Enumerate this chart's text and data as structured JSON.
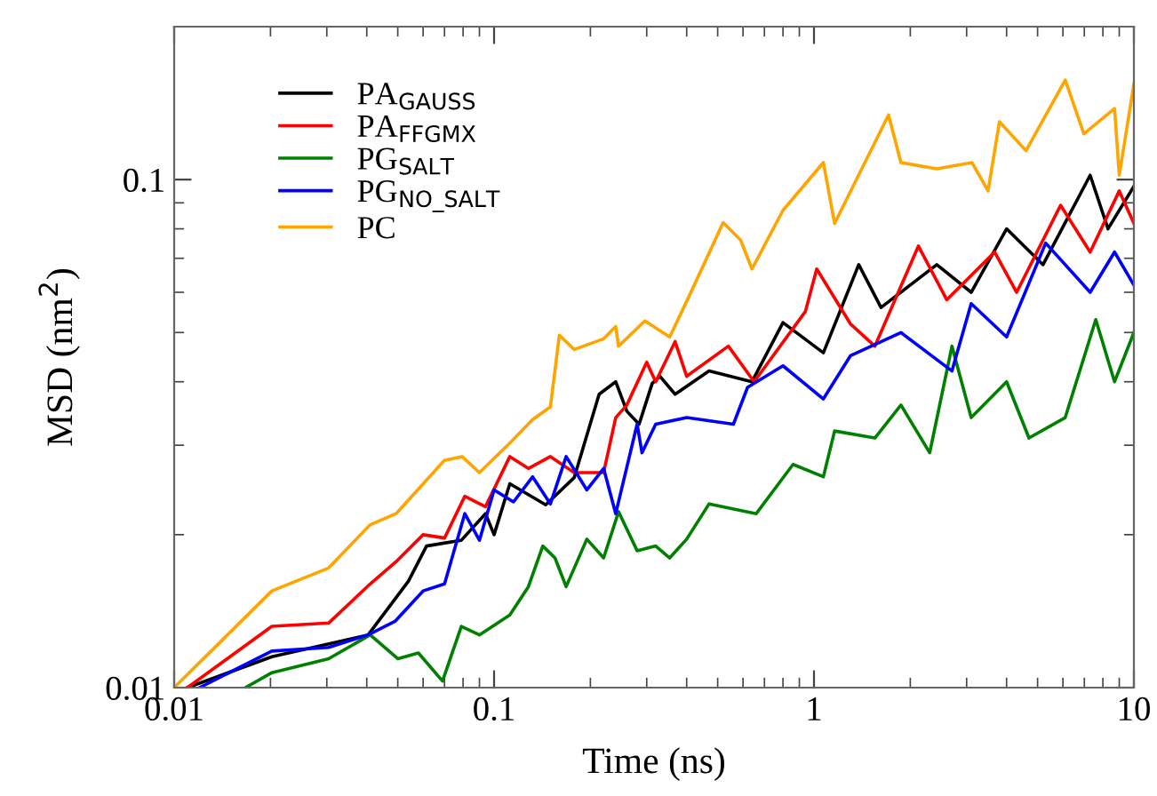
{
  "chart_data": {
    "type": "line",
    "xlabel": "Time (ns)",
    "ylabel": "MSD (nm$^{2}$)",
    "log": "xy",
    "xlim": [
      0.01,
      10
    ],
    "ylim": [
      0.01,
      0.2
    ],
    "xticks": [
      0.01,
      0.1,
      1,
      10
    ],
    "yticks": [
      0.01,
      0.1
    ],
    "legend": "top left",
    "grid": false,
    "marker": "none",
    "line_style": "solid",
    "series": [
      {
        "name": "PA$_{GAUSS}$",
        "color": "#000000",
        "x": [
          0.011,
          0.0202,
          0.0404,
          0.054,
          0.0615,
          0.079,
          0.094,
          0.1,
          0.112,
          0.145,
          0.178,
          0.213,
          0.24,
          0.26,
          0.284,
          0.312,
          0.33,
          0.368,
          0.47,
          0.64,
          0.8,
          1.07,
          1.38,
          1.62,
          2.42,
          3.1,
          4.0,
          5.2,
          7.3,
          8.3,
          10
        ],
        "values": [
          0.01,
          0.0115,
          0.0127,
          0.0162,
          0.019,
          0.0195,
          0.022,
          0.02,
          0.0252,
          0.0229,
          0.0259,
          0.0378,
          0.04,
          0.035,
          0.033,
          0.0397,
          0.041,
          0.0378,
          0.042,
          0.04,
          0.0523,
          0.0456,
          0.068,
          0.056,
          0.068,
          0.06,
          0.08,
          0.068,
          0.102,
          0.08,
          0.097
        ]
      },
      {
        "name": "PA$_{FFGMX}$",
        "color": "#ff0000",
        "x": [
          0.011,
          0.0202,
          0.0304,
          0.041,
          0.0494,
          0.06,
          0.07,
          0.081,
          0.094,
          0.112,
          0.128,
          0.15,
          0.178,
          0.22,
          0.24,
          0.26,
          0.3,
          0.32,
          0.368,
          0.4,
          0.54,
          0.65,
          0.94,
          1.02,
          1.3,
          1.55,
          2.12,
          2.6,
          3.67,
          4.3,
          5.9,
          7.3,
          9,
          10
        ],
        "values": [
          0.01,
          0.0132,
          0.0134,
          0.016,
          0.0177,
          0.02,
          0.0197,
          0.0238,
          0.0227,
          0.0285,
          0.027,
          0.0285,
          0.0265,
          0.0265,
          0.034,
          0.036,
          0.0437,
          0.04,
          0.048,
          0.041,
          0.047,
          0.04,
          0.055,
          0.0667,
          0.052,
          0.047,
          0.074,
          0.058,
          0.072,
          0.06,
          0.089,
          0.072,
          0.095,
          0.082
        ]
      },
      {
        "name": "PG$_{SALT}$",
        "color": "#008000",
        "x": [
          0.0167,
          0.0202,
          0.0304,
          0.041,
          0.05,
          0.058,
          0.069,
          0.079,
          0.09,
          0.112,
          0.128,
          0.142,
          0.155,
          0.168,
          0.195,
          0.22,
          0.245,
          0.28,
          0.32,
          0.354,
          0.4,
          0.47,
          0.66,
          0.86,
          1.07,
          1.16,
          1.55,
          1.87,
          2.3,
          2.7,
          3.1,
          4.0,
          4.7,
          6.1,
          7.6,
          8.7,
          10
        ],
        "values": [
          0.01,
          0.0107,
          0.0114,
          0.0127,
          0.0114,
          0.0117,
          0.0103,
          0.0132,
          0.0127,
          0.0139,
          0.0158,
          0.019,
          0.018,
          0.0158,
          0.0196,
          0.018,
          0.0222,
          0.0186,
          0.019,
          0.018,
          0.0196,
          0.023,
          0.022,
          0.0275,
          0.026,
          0.032,
          0.031,
          0.036,
          0.029,
          0.047,
          0.034,
          0.04,
          0.031,
          0.034,
          0.053,
          0.04,
          0.05
        ]
      },
      {
        "name": "PG$_{NO_SALT}$",
        "color": "#0000ff",
        "x": [
          0.012,
          0.0202,
          0.0304,
          0.0404,
          0.049,
          0.06,
          0.07,
          0.081,
          0.09,
          0.1,
          0.115,
          0.132,
          0.15,
          0.168,
          0.195,
          0.22,
          0.24,
          0.28,
          0.29,
          0.32,
          0.4,
          0.56,
          0.62,
          0.8,
          1.07,
          1.3,
          1.87,
          2.7,
          3.1,
          4.0,
          5.3,
          7.3,
          8.7,
          10
        ],
        "values": [
          0.01,
          0.0118,
          0.012,
          0.0127,
          0.0135,
          0.0155,
          0.016,
          0.022,
          0.0195,
          0.0245,
          0.0232,
          0.026,
          0.023,
          0.0285,
          0.0245,
          0.027,
          0.022,
          0.033,
          0.029,
          0.033,
          0.034,
          0.033,
          0.039,
          0.043,
          0.037,
          0.045,
          0.05,
          0.042,
          0.057,
          0.049,
          0.075,
          0.06,
          0.072,
          0.062
        ]
      },
      {
        "name": "PC",
        "color": "#ffa500",
        "x": [
          0.01,
          0.0202,
          0.0304,
          0.0409,
          0.0494,
          0.0699,
          0.0794,
          0.09,
          0.112,
          0.132,
          0.15,
          0.16,
          0.178,
          0.22,
          0.24,
          0.245,
          0.296,
          0.354,
          0.42,
          0.52,
          0.59,
          0.64,
          0.8,
          1.07,
          1.16,
          1.71,
          1.87,
          2.42,
          3.12,
          3.5,
          3.8,
          4.6,
          6.1,
          6.98,
          8.7,
          9.0,
          10
        ],
        "values": [
          0.01,
          0.0155,
          0.0172,
          0.0209,
          0.022,
          0.028,
          0.0285,
          0.0265,
          0.0303,
          0.0337,
          0.0357,
          0.0494,
          0.0463,
          0.0486,
          0.0514,
          0.047,
          0.0527,
          0.049,
          0.0615,
          0.0823,
          0.076,
          0.0667,
          0.087,
          0.108,
          0.082,
          0.134,
          0.108,
          0.105,
          0.108,
          0.095,
          0.13,
          0.114,
          0.157,
          0.123,
          0.138,
          0.102,
          0.154
        ]
      }
    ]
  }
}
